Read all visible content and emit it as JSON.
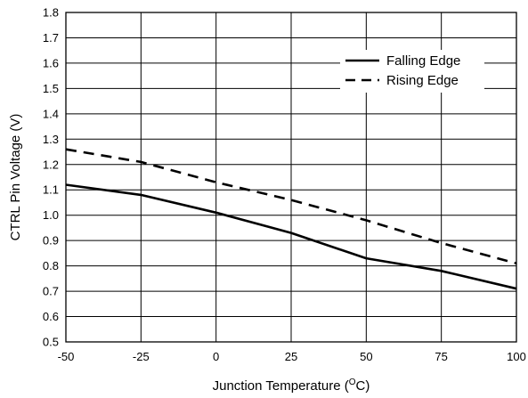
{
  "chart_data": {
    "type": "line",
    "title": "",
    "xlabel": "Junction Temperature (",
    "xlabel_sup": "O",
    "xlabel_suffix": "C)",
    "ylabel": "CTRL Pin Voltage (V)",
    "xlim": [
      -50,
      100
    ],
    "ylim": [
      0.5,
      1.8
    ],
    "x_ticks": [
      -50,
      -25,
      0,
      25,
      50,
      75,
      100
    ],
    "y_ticks": [
      0.5,
      0.6,
      0.7,
      0.8,
      0.9,
      1.0,
      1.1,
      1.2,
      1.3,
      1.4,
      1.5,
      1.6,
      1.7,
      1.8
    ],
    "x_tick_labels": [
      "-50",
      "-25",
      "0",
      "25",
      "50",
      "75",
      "100"
    ],
    "y_tick_labels": [
      "0.5",
      "0.6",
      "0.7",
      "0.8",
      "0.9",
      "1.0",
      "1.1",
      "1.2",
      "1.3",
      "1.4",
      "1.5",
      "1.6",
      "1.7",
      "1.8"
    ],
    "grid": true,
    "legend_position": "top-right",
    "series": [
      {
        "name": "Falling Edge",
        "style": "solid",
        "color": "#000000",
        "x": [
          -50,
          -25,
          0,
          25,
          50,
          75,
          100
        ],
        "y": [
          1.12,
          1.08,
          1.01,
          0.93,
          0.83,
          0.78,
          0.71
        ]
      },
      {
        "name": "Rising Edge",
        "style": "dashed",
        "color": "#000000",
        "x": [
          -50,
          -25,
          0,
          25,
          50,
          75,
          100
        ],
        "y": [
          1.26,
          1.21,
          1.13,
          1.06,
          0.98,
          0.89,
          0.81
        ]
      }
    ]
  }
}
